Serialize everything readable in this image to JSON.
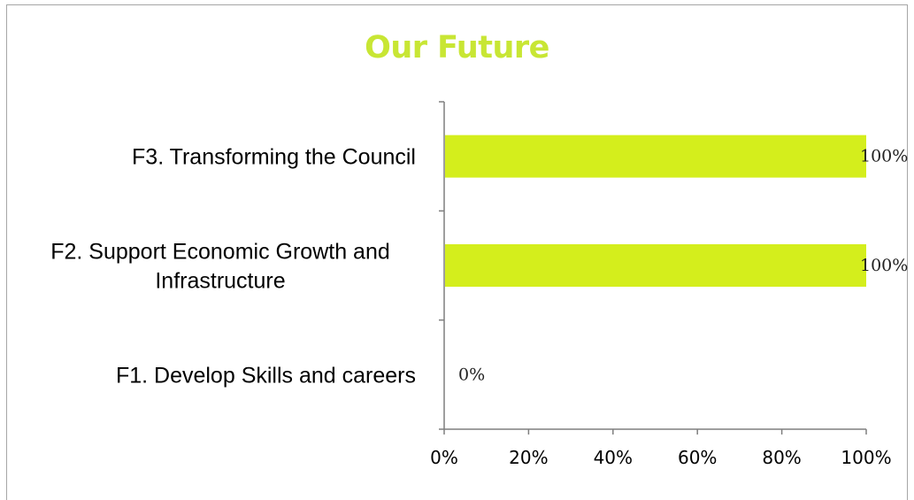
{
  "chart_data": {
    "type": "bar",
    "orientation": "horizontal",
    "title": "Our Future",
    "categories": [
      [
        "F1. Develop Skills and careers"
      ],
      [
        "F2. Support Economic Growth and",
        "Infrastructure"
      ],
      [
        "F3. Transforming the Council"
      ]
    ],
    "values": [
      0,
      100,
      100
    ],
    "data_labels": [
      "0%",
      "100%",
      "100%"
    ],
    "xlim": [
      0,
      100
    ],
    "x_ticks": [
      "0%",
      "20%",
      "40%",
      "60%",
      "80%",
      "100%"
    ],
    "grid": false,
    "legend": "none",
    "colors": {
      "bar": "#d4ee1c",
      "title": "#c8e634",
      "axis": "#7f7f7f"
    }
  }
}
